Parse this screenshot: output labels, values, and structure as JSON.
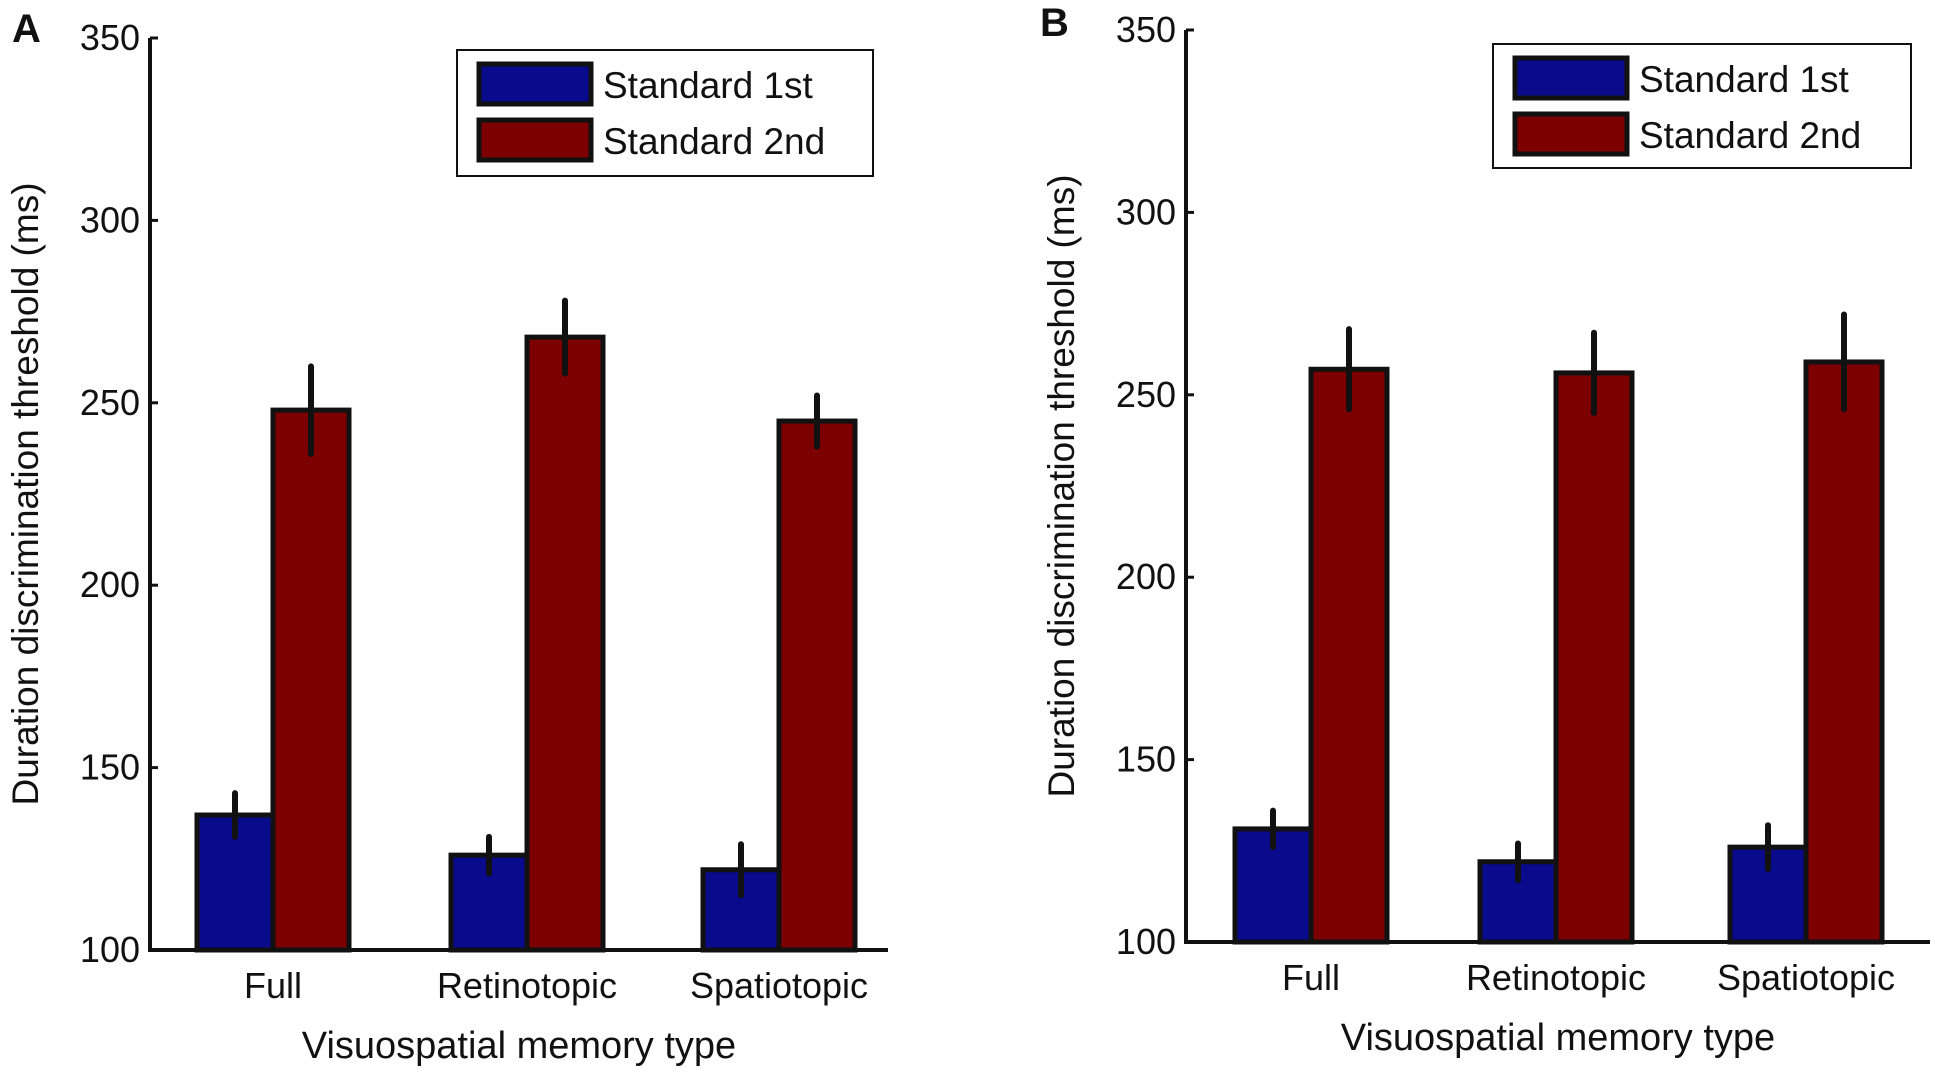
{
  "colors": {
    "standard_1st": "#0a0a8c",
    "standard_2nd": "#7d0000",
    "axis": "#111111",
    "error_bar": "#111111"
  },
  "chart_data": [
    {
      "panel_label": "A",
      "type": "bar",
      "categories": [
        "Full",
        "Retinotopic",
        "Spatiotopic"
      ],
      "series": [
        {
          "name": "Standard 1st",
          "values": [
            137,
            126,
            122
          ],
          "errors": [
            6,
            5,
            7
          ]
        },
        {
          "name": "Standard 2nd",
          "values": [
            248,
            268,
            245
          ],
          "errors": [
            12,
            10,
            7
          ]
        }
      ],
      "title": "",
      "xlabel": "Visuospatial memory type",
      "ylabel": "Duration discrimination threshold (ms)",
      "ylim": [
        100,
        350
      ],
      "yticks": [
        "100",
        "150",
        "200",
        "250",
        "300",
        "350"
      ],
      "legend": {
        "position": "top-right",
        "entries": [
          "Standard 1st",
          "Standard 2nd"
        ]
      },
      "grid": false
    },
    {
      "panel_label": "B",
      "type": "bar",
      "categories": [
        "Full",
        "Retinotopic",
        "Spatiotopic"
      ],
      "series": [
        {
          "name": "Standard 1st",
          "values": [
            131,
            122,
            126
          ],
          "errors": [
            5,
            5,
            6
          ]
        },
        {
          "name": "Standard 2nd",
          "values": [
            257,
            256,
            259
          ],
          "errors": [
            11,
            11,
            13
          ]
        }
      ],
      "title": "",
      "xlabel": "Visuospatial memory type",
      "ylabel": "Duration discrimination threshold (ms)",
      "ylim": [
        100,
        350
      ],
      "yticks": [
        "100",
        "150",
        "200",
        "250",
        "300",
        "350"
      ],
      "legend": {
        "position": "top-right",
        "entries": [
          "Standard 1st",
          "Standard 2nd"
        ]
      },
      "grid": false
    }
  ]
}
